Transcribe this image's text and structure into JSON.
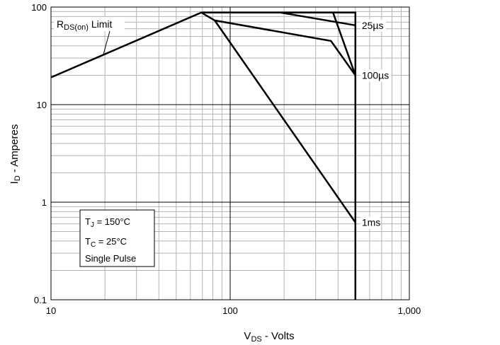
{
  "chart_data": {
    "type": "line",
    "title": "",
    "xlabel": {
      "main": "V",
      "sub": "DS",
      "rest": " - Volts"
    },
    "ylabel": {
      "main": "I",
      "sub": "D",
      "rest": " - Amperes"
    },
    "xscale": "log",
    "yscale": "log",
    "xlim": [
      10,
      1000
    ],
    "ylim": [
      0.1,
      100
    ],
    "grid": true,
    "x_ticks": [
      {
        "value": 10,
        "label": "10"
      },
      {
        "value": 100,
        "label": "100"
      },
      {
        "value": 1000,
        "label": "1,000"
      }
    ],
    "y_ticks": [
      {
        "value": 100,
        "label": "100"
      },
      {
        "value": 10,
        "label": "10"
      },
      {
        "value": 1,
        "label": "1"
      },
      {
        "value": 0.1,
        "label": "0.1"
      }
    ],
    "series": [
      {
        "name": "25µs",
        "points": [
          [
            10,
            19
          ],
          [
            69,
            88
          ],
          [
            500,
            88
          ],
          [
            500,
            0.1
          ]
        ]
      },
      {
        "name": "100µs",
        "points": [
          [
            190,
            88
          ],
          [
            500,
            65
          ]
        ]
      },
      {
        "name": "1ms",
        "points": [
          [
            375,
            88
          ],
          [
            500,
            20
          ]
        ]
      },
      {
        "name": "",
        "points": [
          [
            69,
            88
          ],
          [
            82,
            73
          ],
          [
            365,
            45
          ],
          [
            500,
            20
          ]
        ]
      },
      {
        "name": "",
        "points": [
          [
            82,
            73
          ],
          [
            500,
            0.62
          ]
        ]
      }
    ],
    "annotations": {
      "rds_limit": {
        "main": "R",
        "sub": "DS(on)",
        "rest": " Limit"
      },
      "curve_labels": [
        {
          "text": "25µs",
          "x": 500,
          "y": 65
        },
        {
          "text": "100µs",
          "x": 500,
          "y": 20
        },
        {
          "text": "1ms",
          "x": 500,
          "y": 0.62
        }
      ],
      "conditions": [
        {
          "main": "T",
          "sub": "J",
          "rest": " = 150°C"
        },
        {
          "main": "T",
          "sub": "C",
          "rest": " = 25°C"
        },
        {
          "main": "Single Pulse",
          "sub": "",
          "rest": ""
        }
      ]
    }
  }
}
